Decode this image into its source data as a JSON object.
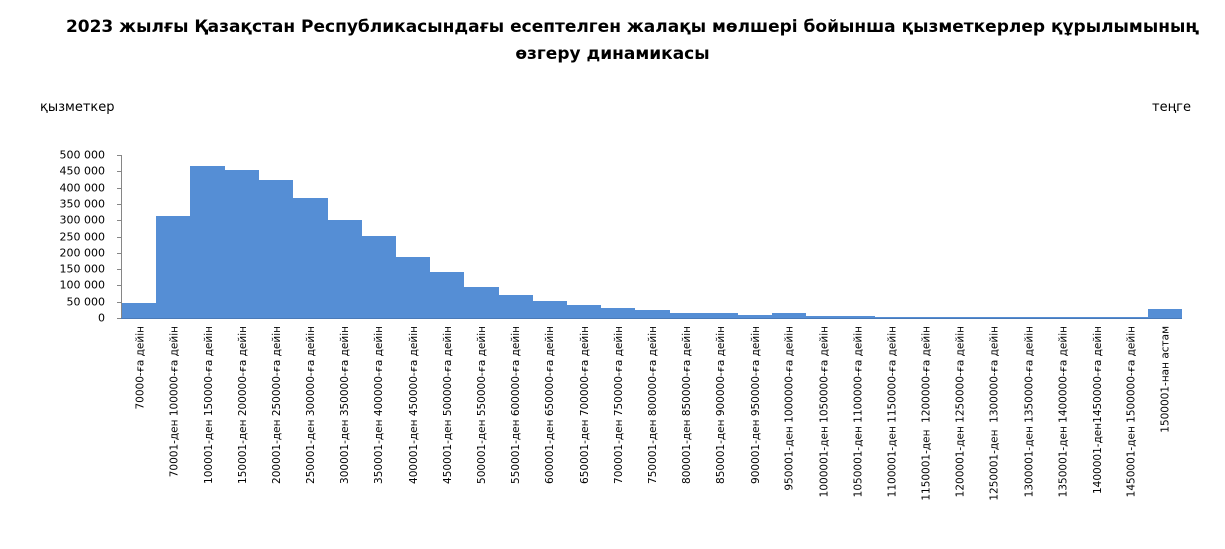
{
  "chart_data": {
    "type": "bar",
    "title": "2023 жылғы Қазақстан Республикасындағы есептелген жалақы мөлшері бойынша қызметкерлер құрылымының өзгеру динамикасы",
    "title_lines": [
      "2023 жылғы Қазақстан Республикасындағы есептелген жалақы мөлшері бойынша қызметкерлер құрылымының",
      "өзгеру динамикасы"
    ],
    "xlabel": "теңге",
    "ylabel": "қызметкер",
    "ylim": [
      0,
      500000
    ],
    "yticks": [
      "500 000",
      "450 000",
      "400 000",
      "350 000",
      "300 000",
      "250 000",
      "200 000",
      "150 000",
      "100 000",
      "50 000",
      "0"
    ],
    "grid": false,
    "legend": null,
    "color": "#558ed5",
    "categories": [
      "70000-ға дейін",
      "70001-ден 100000-ға дейін",
      "100001-ден 150000-ға дейін",
      "150001-ден 200000-ға дейін",
      "200001-ден 250000-ға дейін",
      "250001-ден 300000-ға дейін",
      "300001-ден 350000-ға дейін",
      "350001-ден 400000-ға дейін",
      "400001-ден 450000-ға дейін",
      "450001-ден 500000-ға дейін",
      "500001-ден 550000-ға дейін",
      "550001-ден 600000-ға дейін",
      "600001-ден 650000-ға дейін",
      "650001-ден 700000-ға дейін",
      "700001-ден 750000-ға дейін",
      "750001-ден 800000-ға дейін",
      "800001-ден 850000-ға дейін",
      "850001-ден 900000-ға дейін",
      "900001-ден 950000-ға дейін",
      "950001-ден 1000000-ға дейін",
      "1000001-ден 1050000-ға дейін",
      "1050001-ден 1100000-ға дейін",
      "1100001-ден 1150000-ға дейін",
      "1150001-ден  1200000-ға дейін",
      "1200001-ден 1250000-ға дейін",
      "1250001-ден  1300000-ға дейін",
      "1300001-ден 1350000-ға дейін",
      "1350001-ден 1400000-ға дейін",
      "1400001-ден1450000-ға дейін",
      "1450001-ден 1500000-ға дейін",
      "1500001-нан астам"
    ],
    "values": [
      47000,
      313000,
      467000,
      454000,
      423000,
      369000,
      301000,
      252000,
      187000,
      141000,
      96000,
      71000,
      53000,
      40000,
      30000,
      25000,
      15000,
      14000,
      8000,
      14000,
      6000,
      6000,
      4000,
      3000,
      3000,
      3000,
      1500,
      1500,
      1000,
      1000,
      29000
    ]
  }
}
